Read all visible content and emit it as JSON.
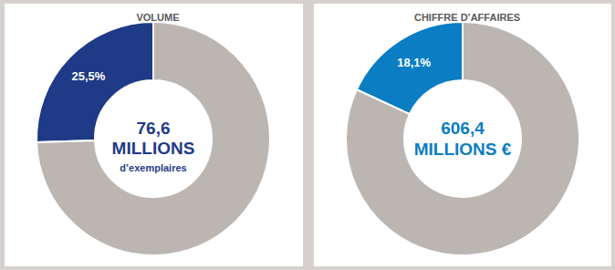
{
  "chart_data": [
    {
      "type": "pie",
      "title": "VOLUME",
      "categories": [
        null,
        null
      ],
      "values": [
        25.5,
        74.5
      ],
      "value_labels": [
        "25,5%",
        null
      ],
      "colors": [
        "#1f3b87",
        "#bcb6b3"
      ],
      "data_labels": true,
      "annotations": [
        "76,6",
        "MILLIONS",
        "d’exemplaires"
      ]
    },
    {
      "type": "pie",
      "title": "CHIFFRE D’AFFAIRES",
      "categories": [
        null,
        null
      ],
      "values": [
        18.1,
        81.9
      ],
      "value_labels": [
        "18,1%",
        null
      ],
      "colors": [
        "#0b7dc2",
        "#bcb6b3"
      ],
      "data_labels": true,
      "annotations": [
        "606,4",
        "MILLIONS €"
      ]
    }
  ]
}
